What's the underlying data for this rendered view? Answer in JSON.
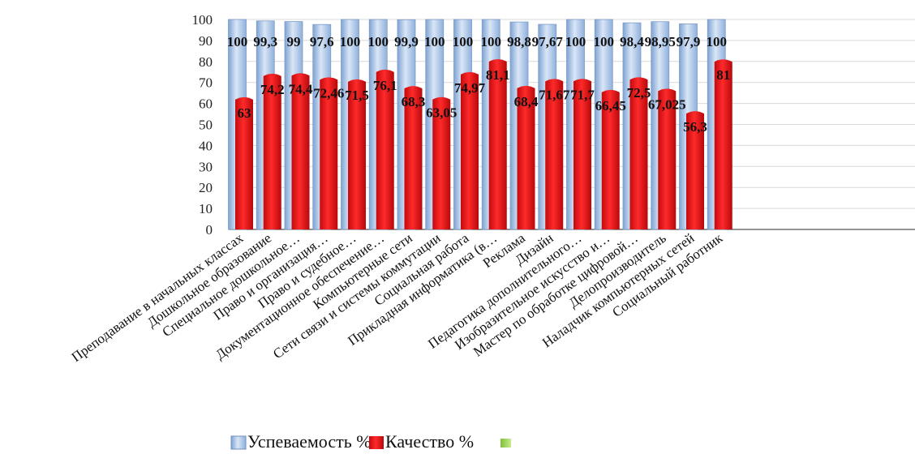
{
  "chart_data": {
    "type": "bar",
    "categories": [
      "Преподавание в начальных классах",
      "Дошкольное образование",
      "Специальное дошкольное…",
      "Право и организация…",
      "Право и судебное…",
      "Документационное обеспечение…",
      "Компьютерные сети",
      "Сети связи и системы коммутации",
      "Социальная работа",
      "Прикладная информатика (в…",
      "Реклама",
      "Дизайн",
      "Педагогика дополнительного…",
      "Изобразительное искусство и…",
      "Мастер по обработке цифровой…",
      "Делопроизводитель",
      "Наладчик компьютерных сетей",
      "Социальный работник"
    ],
    "series": [
      {
        "name": "Успеваемость %",
        "values": [
          100,
          99.3,
          99,
          97.6,
          100,
          100,
          99.9,
          100,
          100,
          100,
          98.8,
          97.67,
          100,
          100,
          98.4,
          98.95,
          97.9,
          100
        ],
        "labels": [
          "100",
          "99,3",
          "99",
          "97,6",
          "100",
          "100",
          "99,9",
          "100",
          "100",
          "100",
          "98,8",
          "97,67",
          "100",
          "100",
          "98,4",
          "98,95",
          "97,9",
          "100"
        ],
        "color": "#a9c4e6"
      },
      {
        "name": "Качество %",
        "values": [
          63,
          74.2,
          74.4,
          72.46,
          71.5,
          76.1,
          68.3,
          63.05,
          74.97,
          81.1,
          68.4,
          71.67,
          71.7,
          66.45,
          72.5,
          67.025,
          56.3,
          81
        ],
        "labels": [
          "63",
          "74,2",
          "74,4",
          "72,46",
          "71,5",
          "76,1",
          "68,3",
          "63,05",
          "74,97",
          "81,1",
          "68,4",
          "71,67",
          "71,7",
          "66,45",
          "72,5",
          "67,025",
          "56,3",
          "81"
        ],
        "color": "#e8161a"
      }
    ],
    "yticks": [
      "0",
      "10",
      "20",
      "30",
      "40",
      "50",
      "60",
      "70",
      "80",
      "90",
      "100"
    ],
    "ylim": [
      0,
      100
    ],
    "grid": true,
    "legend": "bottom"
  }
}
